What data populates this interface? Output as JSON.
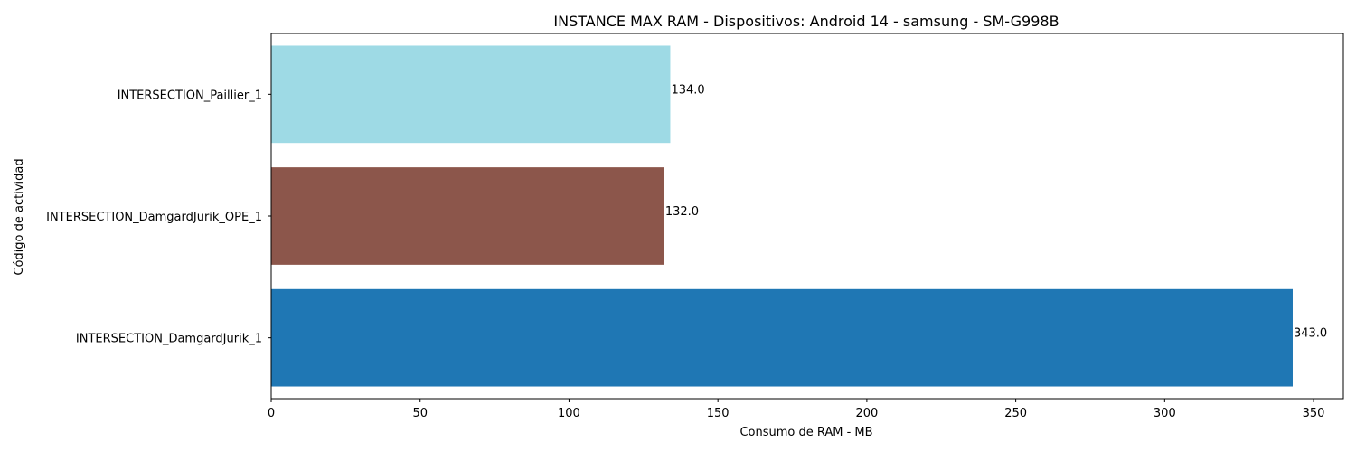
{
  "chart_data": {
    "type": "bar",
    "orientation": "horizontal",
    "title": "INSTANCE MAX RAM - Dispositivos: Android 14 - samsung - SM-G998B",
    "xlabel": "Consumo de RAM - MB",
    "ylabel": "Código de actividad",
    "categories": [
      "INTERSECTION_DamgardJurik_1",
      "INTERSECTION_DamgardJurik_OPE_1",
      "INTERSECTION_Paillier_1"
    ],
    "values": [
      343.0,
      132.0,
      134.0
    ],
    "value_labels": [
      "343.0",
      "132.0",
      "134.0"
    ],
    "colors": [
      "#1f77b4",
      "#8c564b",
      "#9edae5"
    ],
    "xlim": [
      0,
      360
    ],
    "xticks": [
      0,
      50,
      100,
      150,
      200,
      250,
      300,
      350
    ],
    "xtick_labels": [
      "0",
      "50",
      "100",
      "150",
      "200",
      "250",
      "300",
      "350"
    ],
    "grid": false,
    "legend": "none"
  }
}
